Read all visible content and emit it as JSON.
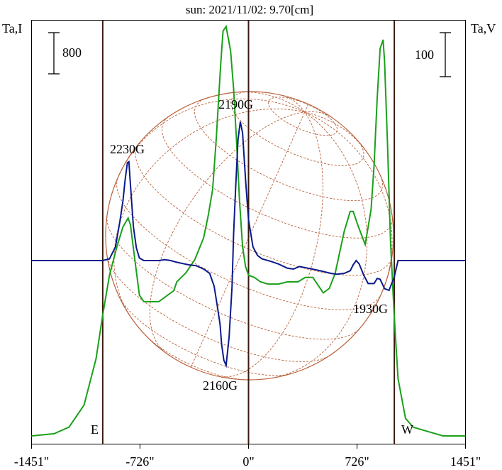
{
  "chart_data": {
    "type": "line",
    "title": "sun: 2021/11/02: 9.70[cm]",
    "left_axis_label": "Ta,I",
    "right_axis_label": "Ta,V",
    "left_scale_label": "800",
    "right_scale_label": "100",
    "xlim": [
      -1451,
      1451
    ],
    "x_ticks": [
      {
        "value": -1451,
        "label": "-1451\""
      },
      {
        "value": -726,
        "label": "-726\""
      },
      {
        "value": 0,
        "label": "0\""
      },
      {
        "value": 726,
        "label": "726\""
      },
      {
        "value": 1451,
        "label": "1451\""
      }
    ],
    "vertical_lines": [
      -975,
      0,
      975
    ],
    "limb_labels": {
      "east": "E",
      "west": "W"
    },
    "grid": false,
    "series": [
      {
        "color": "#1aa01a",
        "x": [
          -1451,
          -1300,
          -1200,
          -1100,
          -1020,
          -975,
          -930,
          -880,
          -840,
          -805,
          -790,
          -760,
          -730,
          -700,
          -600,
          -500,
          -480,
          -420,
          -360,
          -300,
          -270,
          -240,
          -215,
          -200,
          -185,
          -170,
          -150,
          -120,
          -100,
          -80,
          -60,
          -40,
          -20,
          0,
          40,
          80,
          130,
          200,
          260,
          330,
          380,
          430,
          470,
          500,
          540,
          580,
          640,
          680,
          700,
          730,
          780,
          795,
          820,
          840,
          860,
          880,
          900,
          910,
          930,
          950,
          975,
          1000,
          1050,
          1100,
          1200,
          1300,
          1451
        ],
        "y": [
          0.0,
          0.01,
          0.04,
          0.14,
          0.35,
          0.55,
          0.73,
          0.86,
          0.95,
          0.99,
          0.96,
          0.8,
          0.64,
          0.61,
          0.61,
          0.66,
          0.7,
          0.74,
          0.8,
          0.9,
          1.0,
          1.12,
          1.36,
          1.53,
          1.7,
          1.84,
          1.86,
          1.75,
          1.58,
          1.34,
          1.07,
          0.86,
          0.77,
          0.73,
          0.72,
          0.7,
          0.69,
          0.69,
          0.7,
          0.7,
          0.72,
          0.72,
          0.68,
          0.65,
          0.67,
          0.74,
          0.93,
          1.02,
          1.02,
          0.96,
          0.87,
          0.93,
          1.03,
          1.23,
          1.53,
          1.76,
          1.8,
          1.7,
          1.32,
          0.88,
          0.54,
          0.26,
          0.08,
          0.04,
          0.02,
          0.0,
          0.0
        ]
      },
      {
        "color": "#0a1a8c",
        "x": [
          -1451,
          -1300,
          -1200,
          -1100,
          -1030,
          -975,
          -930,
          -890,
          -860,
          -840,
          -825,
          -810,
          -800,
          -790,
          -770,
          -750,
          -730,
          -700,
          -660,
          -600,
          -560,
          -520,
          -480,
          -400,
          -350,
          -300,
          -260,
          -230,
          -210,
          -190,
          -180,
          -165,
          -150,
          -130,
          -110,
          -100,
          -85,
          -70,
          -55,
          -40,
          -20,
          0,
          30,
          60,
          90,
          150,
          200,
          260,
          300,
          340,
          400,
          480,
          550,
          590,
          640,
          680,
          700,
          720,
          740,
          770,
          800,
          840,
          860,
          880,
          910,
          940,
          975,
          1000,
          1050,
          1100,
          1200,
          1300,
          1451
        ],
        "y": [
          0.0,
          0.0,
          0.0,
          0.0,
          0.0,
          0.0,
          0.02,
          0.16,
          0.46,
          0.7,
          0.95,
          1.15,
          1.16,
          0.9,
          0.4,
          0.15,
          0.03,
          0.0,
          0.0,
          0.0,
          0.01,
          0.0,
          -0.02,
          -0.05,
          -0.06,
          -0.1,
          -0.15,
          -0.3,
          -0.52,
          -0.75,
          -0.98,
          -1.17,
          -1.23,
          -0.9,
          -0.3,
          0.3,
          0.9,
          1.42,
          1.63,
          1.5,
          0.95,
          0.48,
          0.16,
          0.06,
          0.02,
          -0.01,
          -0.04,
          -0.09,
          -0.1,
          -0.07,
          -0.09,
          -0.12,
          -0.15,
          -0.16,
          -0.15,
          -0.12,
          -0.05,
          0.0,
          -0.04,
          -0.17,
          -0.27,
          -0.27,
          -0.21,
          -0.22,
          -0.33,
          -0.35,
          -0.19,
          0.0,
          0.0,
          0.0,
          0.0,
          0.0,
          0.0
        ]
      }
    ],
    "annotations": [
      {
        "text": "2230G",
        "x": -800,
        "series": 1
      },
      {
        "text": "2190G",
        "x": -55,
        "series": 1
      },
      {
        "text": "2160G",
        "x": -150,
        "series": 1
      },
      {
        "text": "1930G",
        "x": 930,
        "series": 1
      }
    ]
  },
  "colors": {
    "green_series": "#1aa01a",
    "blue_series": "#0a1a8c",
    "title": "#1a237e",
    "disk_grid": "#b8603a",
    "vertical_lines": "#3a1a10"
  }
}
